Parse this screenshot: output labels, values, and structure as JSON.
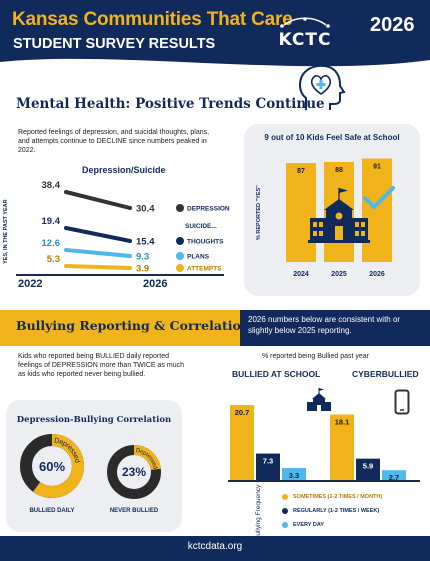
{
  "header": {
    "title": "Kansas Communities That Care",
    "subtitle": "STUDENT SURVEY RESULTS",
    "logo_text": "KCTC",
    "year": "2026"
  },
  "mental_health": {
    "title": "Mental Health: Positive Trends Continue",
    "description": "Reported feelings of depression, and suicidal thoughts, plans, and attempts continue to DECLINE since numbers peaked in 2022."
  },
  "dep_suicide_chart": {
    "title": "Depression/Suicide",
    "y_axis_label": "YES, IN THE PAST YEAR",
    "suicide_header": "SUICIDE...",
    "start_year": "2022",
    "end_year": "2026",
    "series": [
      {
        "name": "DEPRESSION",
        "start": "38.4",
        "end": "30.4",
        "color": "#333333"
      },
      {
        "name": "THOUGHTS",
        "start": "19.4",
        "end": "15.4",
        "color": "#112a5c"
      },
      {
        "name": "PLANS",
        "start": "12.6",
        "end": "9.3",
        "color": "#4fb7ea"
      },
      {
        "name": "ATTEMPTS",
        "start": "5.3",
        "end": "3.9",
        "color": "#f1b31c"
      }
    ]
  },
  "safe_school": {
    "title": "9 out of 10 Kids Feel Safe at School",
    "y_axis_label": "% REPORTED \"YES\"",
    "bars": [
      {
        "year": "2024",
        "value": "87"
      },
      {
        "year": "2025",
        "value": "88"
      },
      {
        "year": "2026",
        "value": "91"
      }
    ]
  },
  "bullying_banner": {
    "title": "Bullying Reporting & Correlation:",
    "note": "2026 numbers below are consistent with or slightly below 2025 reporting."
  },
  "bullying_text": "Kids who reported being BULLIED daily reported feelings of DEPRESSION more than TWICE as much as kids who reported never being bullied.",
  "correlation": {
    "title": "Depression-Bullying Correlation",
    "ring_label": "Depressed",
    "daily": {
      "value": "60%",
      "label": "BULLIED DAILY",
      "fraction": 0.6
    },
    "never": {
      "value": "23%",
      "label": "NEVER BULLIED",
      "fraction": 0.23
    }
  },
  "bullied_chart": {
    "title": "% reported being Bullied past year",
    "groups": [
      {
        "name": "BULLIED AT SCHOOL",
        "values": [
          "20.7",
          "7.3",
          "3.3"
        ]
      },
      {
        "name": "CYBERBULLIED",
        "values": [
          "18.1",
          "5.9",
          "2.7"
        ]
      }
    ],
    "axis_label": "Bullying Frequency",
    "legend": [
      {
        "label": "SOMETIMES (1-2 TIMES / MONTH)",
        "color": "#f1b31c"
      },
      {
        "label": "REGULARLY (1-2 TIMES / WEEK)",
        "color": "#112a5c"
      },
      {
        "label": "EVERY DAY",
        "color": "#4fb7ea"
      }
    ]
  },
  "footer": {
    "url": "kctcdata.org"
  }
}
